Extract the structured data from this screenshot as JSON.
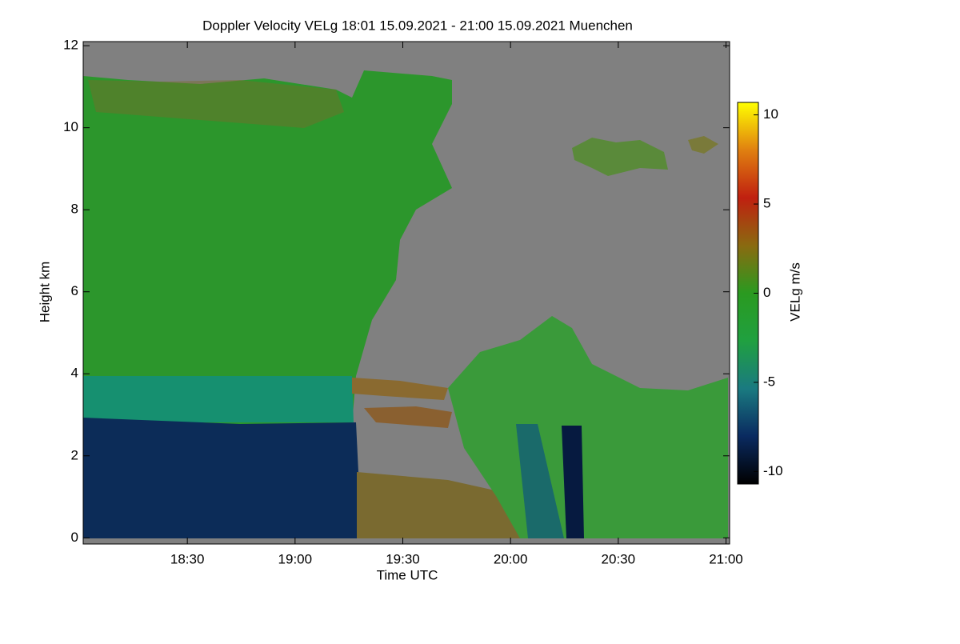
{
  "chart_data": {
    "type": "heatmap",
    "title": "Doppler Velocity VELg   18:01 15.09.2021 - 21:00 15.09.2021 Muenchen",
    "xlabel": "Time UTC",
    "ylabel": "Height km",
    "xlim": [
      18.0167,
      21.0167
    ],
    "xticks": [
      {
        "value": 18.5,
        "label": "18:30"
      },
      {
        "value": 19.0,
        "label": "19:00"
      },
      {
        "value": 19.5,
        "label": "19:30"
      },
      {
        "value": 20.0,
        "label": "20:00"
      },
      {
        "value": 20.5,
        "label": "20:30"
      },
      {
        "value": 21.0,
        "label": "21:00"
      }
    ],
    "ylim": [
      -0.15,
      12.1
    ],
    "yticks": [
      0,
      2,
      4,
      6,
      8,
      10,
      12
    ],
    "background": "#808080",
    "colorbar": {
      "label": "VELg m/s",
      "clim": [
        -10.7,
        10.7
      ],
      "ticks": [
        -10,
        -5,
        0,
        5,
        10
      ],
      "colors": [
        "#000000",
        "#0a2a60",
        "#1a7a80",
        "#20a040",
        "#2a9a20",
        "#8a6a10",
        "#c02010",
        "#e08010",
        "#ffff00"
      ]
    }
  }
}
